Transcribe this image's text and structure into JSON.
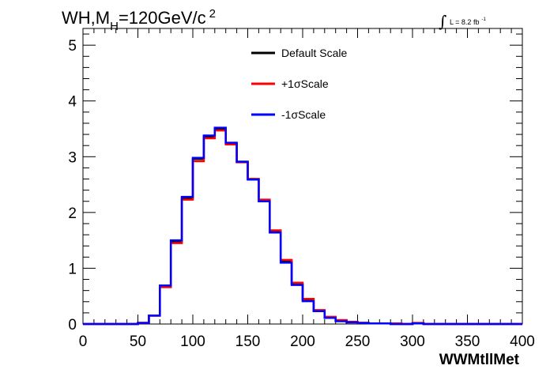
{
  "title": {
    "prefix": "WH,M",
    "subscript": "H",
    "suffix": "=120GeV/c",
    "superscript": "2"
  },
  "luminosity": {
    "symbol": "∫",
    "text": "L = 8.2 fb",
    "superscript": "-1"
  },
  "colors": {
    "default": "#000000",
    "plus": "#ff0000",
    "minus": "#0000ff",
    "frame": "#000000"
  },
  "chart_data": {
    "type": "line",
    "style": "step-histogram",
    "xlabel": "WWMtllMet",
    "ylabel": "",
    "xlim": [
      0,
      400
    ],
    "ylim": [
      0,
      5.3
    ],
    "x_ticks": [
      "0",
      "50",
      "100",
      "150",
      "200",
      "250",
      "300",
      "350",
      "400"
    ],
    "y_ticks": [
      "0",
      "1",
      "2",
      "3",
      "4",
      "5"
    ],
    "bin_edges": [
      0,
      10,
      20,
      30,
      40,
      50,
      60,
      70,
      80,
      90,
      100,
      110,
      120,
      130,
      140,
      150,
      160,
      170,
      180,
      190,
      200,
      210,
      220,
      230,
      240,
      250,
      260,
      270,
      280,
      290,
      300,
      310,
      320,
      330,
      340,
      350,
      360,
      370,
      380,
      390,
      400
    ],
    "legend_position": "top-center",
    "series": [
      {
        "name": "Default Scale",
        "color": "#000000",
        "values": [
          0,
          0,
          0,
          0,
          0,
          0.02,
          0.15,
          0.68,
          1.48,
          2.26,
          2.96,
          3.36,
          3.5,
          3.24,
          2.91,
          2.6,
          2.22,
          1.66,
          1.12,
          0.72,
          0.43,
          0.24,
          0.12,
          0.06,
          0.03,
          0.02,
          0.01,
          0.01,
          0,
          0,
          0.01,
          0,
          0,
          0,
          0,
          0,
          0,
          0,
          0,
          0
        ]
      },
      {
        "name": "+1σScale",
        "color": "#ff0000",
        "values": [
          0,
          0,
          0,
          0,
          0,
          0.02,
          0.15,
          0.66,
          1.45,
          2.23,
          2.92,
          3.33,
          3.47,
          3.22,
          2.9,
          2.6,
          2.23,
          1.68,
          1.15,
          0.74,
          0.45,
          0.25,
          0.13,
          0.07,
          0.04,
          0.02,
          0.01,
          0.01,
          0.01,
          0,
          0.02,
          0,
          0,
          0,
          0,
          0,
          0,
          0,
          0,
          0
        ]
      },
      {
        "name": "-1σScale",
        "color": "#0000ff",
        "values": [
          0,
          0,
          0,
          0,
          0,
          0.02,
          0.15,
          0.69,
          1.5,
          2.28,
          2.98,
          3.38,
          3.52,
          3.25,
          2.91,
          2.59,
          2.2,
          1.64,
          1.1,
          0.7,
          0.41,
          0.23,
          0.11,
          0.05,
          0.03,
          0.02,
          0.01,
          0.01,
          0,
          0,
          0.01,
          0,
          0,
          0,
          0,
          0,
          0,
          0,
          0,
          0
        ]
      }
    ]
  }
}
